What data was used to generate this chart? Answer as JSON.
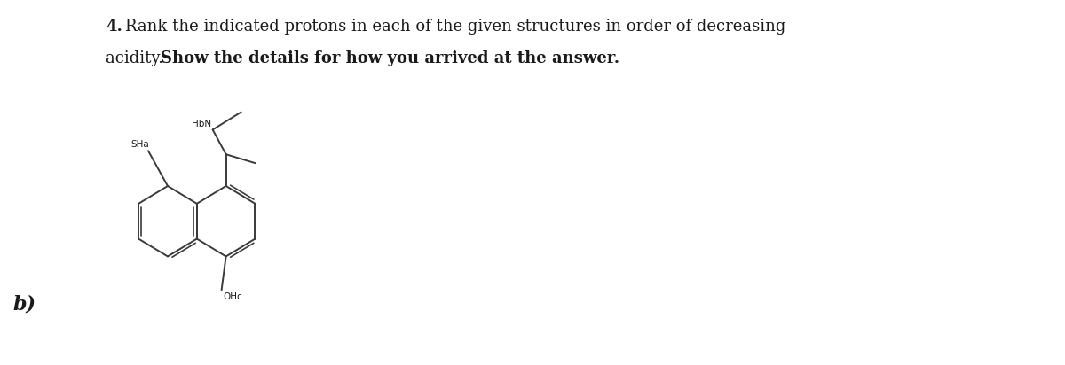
{
  "title_part1_normal": "4. ",
  "title_part1_rest": "Rank the indicated protons in each of the given structures in order of decreasing",
  "title_line2_normal": "acidity. ",
  "title_line2_bold": "Show the details for how you arrived at the answer.",
  "label_b": "b)",
  "label_sha": "SHa",
  "label_hbn": "HbN",
  "label_ohc": "OHc",
  "bg_color": "#ffffff",
  "text_color": "#1a1a1a",
  "bond_color": "#3a3a3a",
  "title_fontsize": 13.0,
  "label_fontsize": 7.5,
  "fig_width": 12.0,
  "fig_height": 4.12
}
